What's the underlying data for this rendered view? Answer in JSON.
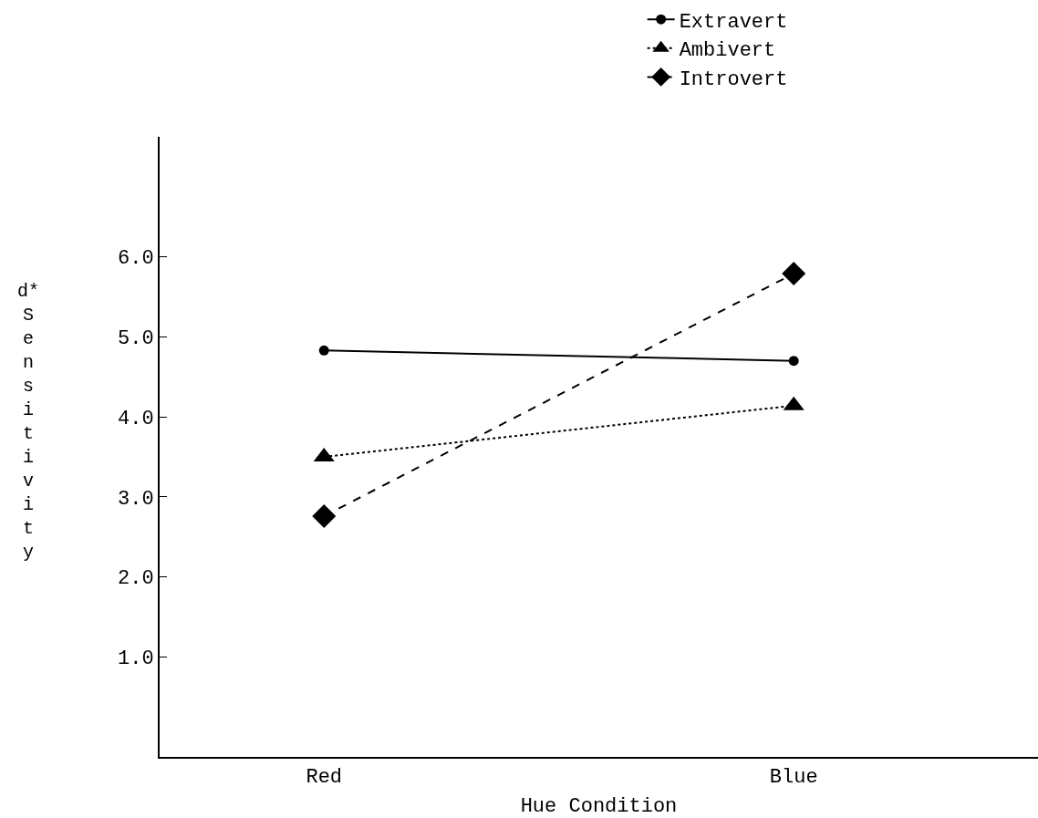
{
  "chart_data": {
    "type": "line",
    "xlabel": "Hue Condition",
    "ylabel": "d* Sensitivity",
    "categories": [
      "Red",
      "Blue"
    ],
    "series": [
      {
        "name": "Extravert",
        "color": "#000000",
        "values": [
          4.83,
          4.7
        ],
        "marker": "circle",
        "line_style": "solid"
      },
      {
        "name": "Ambivert",
        "color": "#000000",
        "values": [
          3.5,
          4.14
        ],
        "marker": "triangle",
        "line_style": "dotted"
      },
      {
        "name": "Introvert",
        "color": "#000000",
        "values": [
          2.76,
          5.79
        ],
        "marker": "diamond",
        "line_style": "dashed"
      }
    ],
    "ylim": [
      -0.25,
      7.5
    ],
    "yticks": [
      {
        "value": 1,
        "label": "1.0"
      },
      {
        "value": 2,
        "label": "2.0"
      },
      {
        "value": 3,
        "label": "3.0"
      },
      {
        "value": 4,
        "label": "4.0"
      },
      {
        "value": 5,
        "label": "5.0"
      },
      {
        "value": 6,
        "label": "6.0"
      }
    ],
    "grid": false,
    "legend": "top right"
  }
}
